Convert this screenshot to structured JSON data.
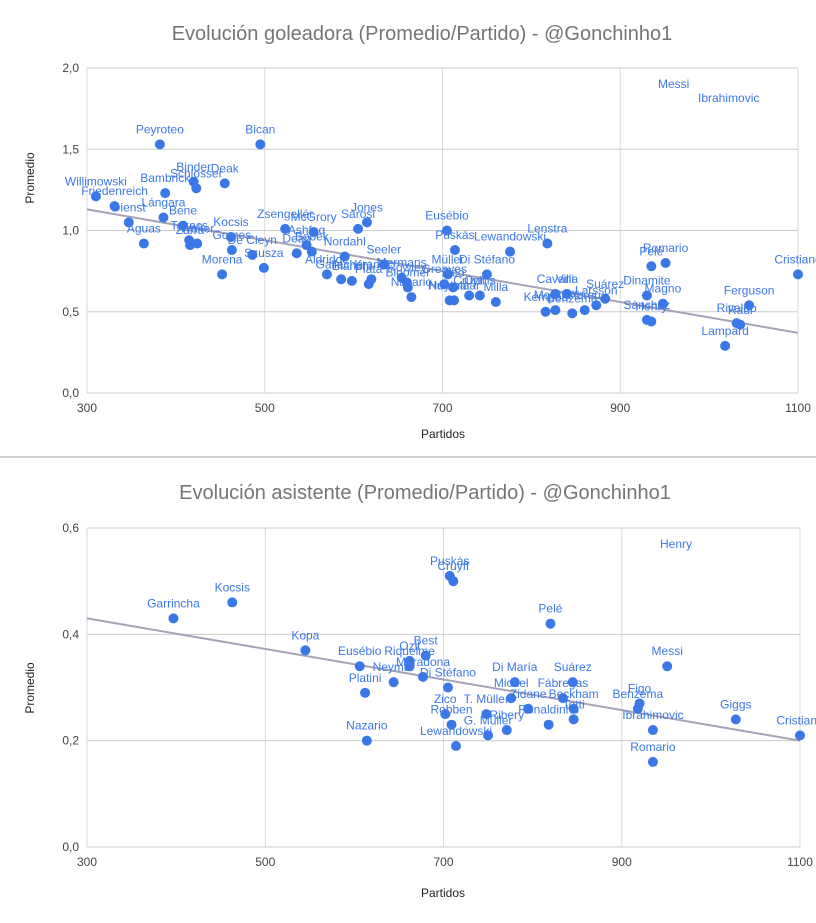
{
  "chart_data": [
    {
      "type": "scatter",
      "title": "Evolución goleadora (Promedio/Partido)  -  @Gonchinho1",
      "xlabel": "Partidos",
      "ylabel": "Promedio",
      "xlim": [
        300,
        1100
      ],
      "ylim": [
        0,
        2
      ],
      "xticks": [
        "300",
        "500",
        "700",
        "900",
        "1100"
      ],
      "yticks": [
        "0,0",
        "0,5",
        "1,0",
        "1,5",
        "2,0"
      ],
      "trendline": [
        [
          300,
          1.13
        ],
        [
          1100,
          0.37
        ]
      ],
      "points": [
        {
          "x": 382,
          "y": 1.53,
          "label": "Peyroteo"
        },
        {
          "x": 495,
          "y": 1.53,
          "label": "Bican"
        },
        {
          "x": 420,
          "y": 1.3,
          "label": "Binder"
        },
        {
          "x": 423,
          "y": 1.26,
          "label": "Schlosser"
        },
        {
          "x": 388,
          "y": 1.23,
          "label": "Bambrick"
        },
        {
          "x": 455,
          "y": 1.29,
          "label": "Deak"
        },
        {
          "x": 310,
          "y": 1.21,
          "label": "Willimowski"
        },
        {
          "x": 331,
          "y": 1.15,
          "label": "Friedenreich"
        },
        {
          "x": 347,
          "y": 1.05,
          "label": "Dienst"
        },
        {
          "x": 386,
          "y": 1.08,
          "label": "Lángara"
        },
        {
          "x": 408,
          "y": 1.03,
          "label": "Bene"
        },
        {
          "x": 364,
          "y": 0.92,
          "label": "Aguas"
        },
        {
          "x": 415,
          "y": 0.94,
          "label": "Takacs"
        },
        {
          "x": 416,
          "y": 0.91,
          "label": "Zarra"
        },
        {
          "x": 424,
          "y": 0.92,
          "label": "Walter"
        },
        {
          "x": 452,
          "y": 0.73,
          "label": "Morena"
        },
        {
          "x": 462,
          "y": 0.96,
          "label": "Kocsis"
        },
        {
          "x": 463,
          "y": 0.88,
          "label": "Gomes"
        },
        {
          "x": 499,
          "y": 0.77,
          "label": "Szusza"
        },
        {
          "x": 486,
          "y": 0.85,
          "label": "De Cleyn"
        },
        {
          "x": 523,
          "y": 1.01,
          "label": "Zsengellér"
        },
        {
          "x": 536,
          "y": 0.86,
          "label": "Dean"
        },
        {
          "x": 547,
          "y": 0.91,
          "label": "Ashfaq"
        },
        {
          "x": 553,
          "y": 0.87,
          "label": "Bobek"
        },
        {
          "x": 555,
          "y": 0.99,
          "label": "McGrory"
        },
        {
          "x": 570,
          "y": 0.73,
          "label": "Aldridge"
        },
        {
          "x": 586,
          "y": 0.7,
          "label": "Gallacher"
        },
        {
          "x": 590,
          "y": 0.84,
          "label": "Nordahl"
        },
        {
          "x": 598,
          "y": 0.69,
          "label": "Bianchi"
        },
        {
          "x": 605,
          "y": 1.01,
          "label": "Sárosi"
        },
        {
          "x": 615,
          "y": 1.05,
          "label": "Jones"
        },
        {
          "x": 617,
          "y": 0.67,
          "label": "Plata"
        },
        {
          "x": 620,
          "y": 0.7,
          "label": "Kranki"
        },
        {
          "x": 634,
          "y": 0.79,
          "label": "Seeler"
        },
        {
          "x": 654,
          "y": 0.71,
          "label": "Mermans"
        },
        {
          "x": 660,
          "y": 0.68,
          "label": "Rowley"
        },
        {
          "x": 661,
          "y": 0.65,
          "label": "Bloomer"
        },
        {
          "x": 665,
          "y": 0.59,
          "label": "Nazario"
        },
        {
          "x": 705,
          "y": 1.0,
          "label": "Eusébio"
        },
        {
          "x": 714,
          "y": 0.88,
          "label": "Puskás"
        },
        {
          "x": 702,
          "y": 0.67,
          "label": "Greaves"
        },
        {
          "x": 706,
          "y": 0.73,
          "label": "Müller"
        },
        {
          "x": 708,
          "y": 0.57,
          "label": "Neymar"
        },
        {
          "x": 713,
          "y": 0.57,
          "label": "Huntelaar"
        },
        {
          "x": 712,
          "y": 0.65,
          "label": "Zico"
        },
        {
          "x": 730,
          "y": 0.6,
          "label": "Cruyff"
        },
        {
          "x": 742,
          "y": 0.6,
          "label": "Onnis"
        },
        {
          "x": 750,
          "y": 0.73,
          "label": "Di Stéfano"
        },
        {
          "x": 760,
          "y": 0.56,
          "label": "Milla"
        },
        {
          "x": 776,
          "y": 0.87,
          "label": "Lewandowski"
        },
        {
          "x": 816,
          "y": 0.5,
          "label": "Kempes"
        },
        {
          "x": 818,
          "y": 0.92,
          "label": "Lenstra"
        },
        {
          "x": 827,
          "y": 0.51,
          "label": "McCoist"
        },
        {
          "x": 827,
          "y": 0.61,
          "label": "Cavani"
        },
        {
          "x": 840,
          "y": 0.61,
          "label": "Villa"
        },
        {
          "x": 846,
          "y": 0.49,
          "label": "Benzema"
        },
        {
          "x": 860,
          "y": 0.51,
          "label": "Abreu"
        },
        {
          "x": 873,
          "y": 0.54,
          "label": "Larsson"
        },
        {
          "x": 883,
          "y": 0.58,
          "label": "Suárez"
        },
        {
          "x": 930,
          "y": 0.45,
          "label": "Sánchez"
        },
        {
          "x": 930,
          "y": 0.6,
          "label": "Dinamite"
        },
        {
          "x": 935,
          "y": 0.44,
          "label": "Henry"
        },
        {
          "x": 935,
          "y": 0.78,
          "label": "Pelé"
        },
        {
          "x": 951,
          "y": 0.8,
          "label": "Romario"
        },
        {
          "x": 948,
          "y": 0.55,
          "label": "Magno"
        },
        {
          "x": 1018,
          "y": 0.29,
          "label": "Lampard"
        },
        {
          "x": 1031,
          "y": 0.43,
          "label": "Rivaldo"
        },
        {
          "x": 1035,
          "y": 0.42,
          "label": "Raúl"
        },
        {
          "x": 1045,
          "y": 0.54,
          "label": "Ferguson"
        },
        {
          "x": 1100,
          "y": 0.73,
          "label": "Cristiano"
        }
      ],
      "extra_labels": [
        "Messi",
        "Ibrahimovic"
      ]
    },
    {
      "type": "scatter",
      "title": "Evolución asistente (Promedio/Partido) - @Gonchinho1",
      "xlabel": "Partidos",
      "ylabel": "Promedio",
      "xlim": [
        300,
        1100
      ],
      "ylim": [
        0,
        0.6
      ],
      "xticks": [
        "300",
        "500",
        "700",
        "900",
        "1100"
      ],
      "yticks": [
        "0,0",
        "0,2",
        "0,4",
        "0,6"
      ],
      "trendline": [
        [
          300,
          0.43
        ],
        [
          1100,
          0.2
        ]
      ],
      "points": [
        {
          "x": 397,
          "y": 0.43,
          "label": "Garrincha"
        },
        {
          "x": 463,
          "y": 0.46,
          "label": "Kocsis"
        },
        {
          "x": 545,
          "y": 0.37,
          "label": "Kopa"
        },
        {
          "x": 606,
          "y": 0.34,
          "label": "Eusébio"
        },
        {
          "x": 612,
          "y": 0.29,
          "label": "Platini"
        },
        {
          "x": 614,
          "y": 0.2,
          "label": "Nazario"
        },
        {
          "x": 644,
          "y": 0.31,
          "label": "Neymar"
        },
        {
          "x": 662,
          "y": 0.35,
          "label": "Ozil"
        },
        {
          "x": 662,
          "y": 0.34,
          "label": "Riquelme"
        },
        {
          "x": 680,
          "y": 0.36,
          "label": "Best"
        },
        {
          "x": 677,
          "y": 0.32,
          "label": "Maradona"
        },
        {
          "x": 702,
          "y": 0.25,
          "label": "Zico"
        },
        {
          "x": 705,
          "y": 0.3,
          "label": "Di Stéfano"
        },
        {
          "x": 707,
          "y": 0.51,
          "label": "Puskás"
        },
        {
          "x": 711,
          "y": 0.5,
          "label": "Cruyff"
        },
        {
          "x": 709,
          "y": 0.23,
          "label": "Robben"
        },
        {
          "x": 714,
          "y": 0.19,
          "label": "Lewandowski"
        },
        {
          "x": 748,
          "y": 0.25,
          "label": "T. Müller"
        },
        {
          "x": 750,
          "y": 0.21,
          "label": "G. Müller"
        },
        {
          "x": 771,
          "y": 0.22,
          "label": "Ribery"
        },
        {
          "x": 776,
          "y": 0.28,
          "label": "Michel"
        },
        {
          "x": 780,
          "y": 0.31,
          "label": "Di María"
        },
        {
          "x": 795,
          "y": 0.26,
          "label": "Zidane"
        },
        {
          "x": 818,
          "y": 0.23,
          "label": "Ronaldinho"
        },
        {
          "x": 820,
          "y": 0.42,
          "label": "Pelé"
        },
        {
          "x": 834,
          "y": 0.28,
          "label": "Fábregas"
        },
        {
          "x": 845,
          "y": 0.31,
          "label": "Suárez"
        },
        {
          "x": 846,
          "y": 0.24,
          "label": "Totti"
        },
        {
          "x": 846,
          "y": 0.26,
          "label": "Beckham"
        },
        {
          "x": 918,
          "y": 0.26,
          "label": "Benzema"
        },
        {
          "x": 920,
          "y": 0.27,
          "label": "Figo"
        },
        {
          "x": 935,
          "y": 0.22,
          "label": "Ibrahimovic"
        },
        {
          "x": 935,
          "y": 0.16,
          "label": "Romario"
        },
        {
          "x": 951,
          "y": 0.34,
          "label": "Messi"
        },
        {
          "x": 1028,
          "y": 0.24,
          "label": "Giggs"
        },
        {
          "x": 1100,
          "y": 0.21,
          "label": "Cristiano"
        }
      ],
      "extra_labels": [
        "Henry"
      ]
    }
  ]
}
